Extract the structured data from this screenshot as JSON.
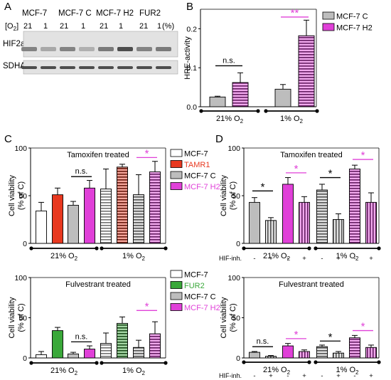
{
  "colors": {
    "white": "#ffffff",
    "gray": "#bdbdbd",
    "magenta": "#e040d8",
    "red": "#e8381f",
    "green": "#3aa83a",
    "black": "#000000"
  },
  "panelA": {
    "letter": "A",
    "cell_lines": [
      {
        "label": "MCF-7",
        "color": "#000000"
      },
      {
        "label": "MCF-7 C",
        "color": "#000000"
      },
      {
        "label": "MCF-7 H2",
        "color": "#e040d8"
      },
      {
        "label": "FUR2",
        "color": "#2c8a2c"
      }
    ],
    "o2_label": "[O",
    "o2_sub": "2",
    "o2_close": "]",
    "o2_values": [
      "21",
      "1",
      "21",
      "1",
      "21",
      "1",
      "21",
      "1"
    ],
    "o2_unit": "(%)",
    "rows": [
      {
        "label": "HIF2a",
        "bands": [
          0.55,
          0.35,
          0.55,
          0.3,
          0.6,
          0.85,
          0.55,
          0.6
        ]
      },
      {
        "label": "SDHA",
        "bands": [
          0.85,
          0.85,
          0.85,
          0.85,
          0.85,
          0.85,
          0.85,
          0.85
        ]
      }
    ]
  },
  "chart_data": [
    {
      "id": "B",
      "type": "bar",
      "letter": "B",
      "title": "",
      "ylabel": "HRE-activity",
      "ylim": [
        0.0,
        0.25
      ],
      "yticks": [
        "0.0",
        "0.1",
        "0.2"
      ],
      "groups": [
        {
          "base": "21% O",
          "sub": "2"
        },
        {
          "base": "1% O",
          "sub": "2"
        }
      ],
      "legend": [
        {
          "name": "MCF-7 C",
          "color": "#bdbdbd"
        },
        {
          "name": "MCF-7 H2",
          "color": "#e040d8"
        }
      ],
      "bars": [
        {
          "group": 0,
          "series": "MCF-7 C",
          "value": 0.025,
          "err": 0.002
        },
        {
          "group": 0,
          "series": "MCF-7 H2",
          "value": 0.062,
          "err": 0.025
        },
        {
          "group": 1,
          "series": "MCF-7 C",
          "value": 0.045,
          "err": 0.012
        },
        {
          "group": 1,
          "series": "MCF-7 H2",
          "value": 0.182,
          "err": 0.04
        }
      ],
      "annotations": [
        {
          "text": "n.s.",
          "color": "#000000",
          "from": 0,
          "to": 1,
          "y": 0.105
        },
        {
          "text": "**",
          "color": "#e040d8",
          "from": 2,
          "to": 3,
          "y": 0.23
        }
      ]
    },
    {
      "id": "C1",
      "type": "bar",
      "letter": "C",
      "title": "Tamoxifen treated",
      "ylabel": "Cell viability",
      "ylabel2": "(% of C)",
      "ylim": [
        0,
        100
      ],
      "yticks": [
        "0",
        "50",
        "100"
      ],
      "groups": [
        {
          "base": "21% O",
          "sub": "2"
        },
        {
          "base": "1% O",
          "sub": "2"
        }
      ],
      "legend": [
        {
          "name": "MCF-7",
          "color": "#ffffff"
        },
        {
          "name": "TAMR1",
          "color": "#e8381f",
          "label_color": "#e8381f"
        },
        {
          "name": "MCF-7 C",
          "color": "#bdbdbd"
        },
        {
          "name": "MCF-7 H2",
          "color": "#e040d8",
          "label_color": "#e040d8"
        }
      ],
      "bars": [
        {
          "group": 0,
          "series": "MCF-7",
          "value": 34,
          "err": 9
        },
        {
          "group": 0,
          "series": "TAMR1",
          "value": 51,
          "err": 7
        },
        {
          "group": 0,
          "series": "MCF-7 C",
          "value": 40,
          "err": 4
        },
        {
          "group": 0,
          "series": "MCF-7 H2",
          "value": 58,
          "err": 8
        },
        {
          "group": 1,
          "series": "MCF-7",
          "value": 57,
          "err": 21
        },
        {
          "group": 1,
          "series": "TAMR1",
          "value": 80,
          "err": 3
        },
        {
          "group": 1,
          "series": "MCF-7 C",
          "value": 51,
          "err": 21
        },
        {
          "group": 1,
          "series": "MCF-7 H2",
          "value": 75,
          "err": 11
        }
      ],
      "annotations": [
        {
          "text": "n.s.",
          "color": "#000000",
          "from": 2,
          "to": 3,
          "y": 70
        },
        {
          "text": "*",
          "color": "#e040d8",
          "from": 6,
          "to": 7,
          "y": 90
        }
      ]
    },
    {
      "id": "C2",
      "type": "bar",
      "letter": "",
      "title": "Fulvestrant treated",
      "ylabel": "Cell viability",
      "ylabel2": "(% of C)",
      "ylim": [
        0,
        100
      ],
      "yticks": [
        "0",
        "50",
        "100"
      ],
      "groups": [
        {
          "base": "21% O",
          "sub": "2"
        },
        {
          "base": "1% O",
          "sub": "2"
        }
      ],
      "legend": [
        {
          "name": "MCF-7",
          "color": "#ffffff"
        },
        {
          "name": "FUR2",
          "color": "#3aa83a",
          "label_color": "#3aa83a"
        },
        {
          "name": "MCF-7 C",
          "color": "#bdbdbd"
        },
        {
          "name": "MCF-7 H2",
          "color": "#e040d8",
          "label_color": "#e040d8"
        }
      ],
      "bars": [
        {
          "group": 0,
          "series": "MCF-7",
          "value": 4,
          "err": 4
        },
        {
          "group": 0,
          "series": "FUR2",
          "value": 34,
          "err": 4
        },
        {
          "group": 0,
          "series": "MCF-7 C",
          "value": 5,
          "err": 2
        },
        {
          "group": 0,
          "series": "MCF-7 H2",
          "value": 11,
          "err": 4
        },
        {
          "group": 1,
          "series": "MCF-7",
          "value": 18,
          "err": 13
        },
        {
          "group": 1,
          "series": "FUR2",
          "value": 43,
          "err": 8
        },
        {
          "group": 1,
          "series": "MCF-7 C",
          "value": 13,
          "err": 9
        },
        {
          "group": 1,
          "series": "MCF-7 H2",
          "value": 30,
          "err": 15
        }
      ],
      "annotations": [
        {
          "text": "n.s.",
          "color": "#000000",
          "from": 2,
          "to": 3,
          "y": 20
        },
        {
          "text": "*",
          "color": "#e040d8",
          "from": 6,
          "to": 7,
          "y": 59
        }
      ]
    },
    {
      "id": "D1",
      "type": "bar",
      "letter": "D",
      "title": "Tamoxifen treated",
      "ylabel": "Cell viability",
      "ylabel2": "(% of C)",
      "ylim": [
        0,
        100
      ],
      "yticks": [
        "0",
        "50",
        "100"
      ],
      "groups": [
        {
          "base": "21% O",
          "sub": "2"
        },
        {
          "base": "1% O",
          "sub": "2"
        }
      ],
      "hif_label": "HIF-inh.",
      "hif_signs": [
        "-",
        "+",
        "-",
        "+",
        "-",
        "+",
        "-",
        "+"
      ],
      "legend": [],
      "bars": [
        {
          "group": 0,
          "series": "MCF-7 C",
          "value": 43,
          "err": 5
        },
        {
          "group": 0,
          "series": "MCF-7 C",
          "value": 24,
          "err": 3
        },
        {
          "group": 0,
          "series": "MCF-7 H2",
          "value": 62,
          "err": 7
        },
        {
          "group": 0,
          "series": "MCF-7 H2",
          "value": 43,
          "err": 6
        },
        {
          "group": 1,
          "series": "MCF-7 C",
          "value": 56,
          "err": 6
        },
        {
          "group": 1,
          "series": "MCF-7 C",
          "value": 25,
          "err": 6
        },
        {
          "group": 1,
          "series": "MCF-7 H2",
          "value": 78,
          "err": 4
        },
        {
          "group": 1,
          "series": "MCF-7 H2",
          "value": 43,
          "err": 10
        }
      ],
      "annotations": [
        {
          "text": "*",
          "color": "#000000",
          "from": 0,
          "to": 1,
          "y": 55
        },
        {
          "text": "*",
          "color": "#e040d8",
          "from": 2,
          "to": 3,
          "y": 74
        },
        {
          "text": "*",
          "color": "#000000",
          "from": 4,
          "to": 5,
          "y": 69
        },
        {
          "text": "*",
          "color": "#e040d8",
          "from": 6,
          "to": 7,
          "y": 88
        }
      ]
    },
    {
      "id": "D2",
      "type": "bar",
      "letter": "",
      "title": "Fulvestrant treated",
      "ylabel": "Cell viability",
      "ylabel2": "(% of C)",
      "ylim": [
        0,
        100
      ],
      "yticks": [
        "0",
        "50",
        "100"
      ],
      "groups": [
        {
          "base": "21% O",
          "sub": "2"
        },
        {
          "base": "1% O",
          "sub": "2"
        }
      ],
      "hif_label": "HIF-inh.",
      "hif_signs": [
        "-",
        "+",
        "-",
        "+",
        "-",
        "+",
        "-",
        "+"
      ],
      "legend": [],
      "bars": [
        {
          "group": 0,
          "series": "MCF-7 C",
          "value": 7,
          "err": 1
        },
        {
          "group": 0,
          "series": "MCF-7 C",
          "value": 2,
          "err": 1
        },
        {
          "group": 0,
          "series": "MCF-7 H2",
          "value": 15,
          "err": 3
        },
        {
          "group": 0,
          "series": "MCF-7 H2",
          "value": 8,
          "err": 2
        },
        {
          "group": 1,
          "series": "MCF-7 C",
          "value": 14,
          "err": 2
        },
        {
          "group": 1,
          "series": "MCF-7 C",
          "value": 6,
          "err": 2
        },
        {
          "group": 1,
          "series": "MCF-7 H2",
          "value": 25,
          "err": 3
        },
        {
          "group": 1,
          "series": "MCF-7 H2",
          "value": 13,
          "err": 3
        }
      ],
      "annotations": [
        {
          "text": "n.s.",
          "color": "#000000",
          "from": 0,
          "to": 1,
          "y": 14
        },
        {
          "text": "*",
          "color": "#e040d8",
          "from": 2,
          "to": 3,
          "y": 24
        },
        {
          "text": "*",
          "color": "#000000",
          "from": 4,
          "to": 5,
          "y": 21
        },
        {
          "text": "*",
          "color": "#e040d8",
          "from": 6,
          "to": 7,
          "y": 34
        }
      ]
    }
  ]
}
